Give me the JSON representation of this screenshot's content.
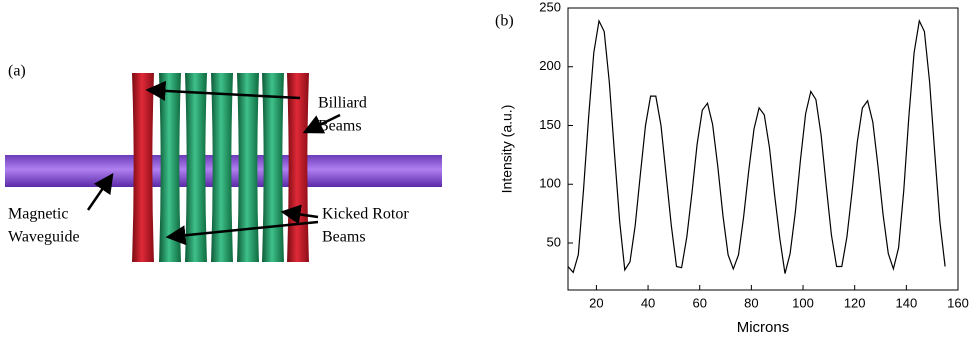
{
  "diagram": {
    "panel_label": "(a)",
    "billiard_label": [
      "Billiard",
      "Beams"
    ],
    "waveguide_label": [
      "Magnetic",
      "Waveguide"
    ],
    "kicked_label": [
      "Kicked Rotor",
      "Beams"
    ]
  },
  "chart_data": {
    "type": "line",
    "panel_label": "(b)",
    "x_label": "Microns",
    "y_label": "Intensity (a.u.)",
    "x": [
      9,
      11,
      13,
      15,
      17,
      19,
      21,
      23,
      25,
      27,
      29,
      31,
      33,
      35,
      37,
      39,
      41,
      43,
      45,
      47,
      49,
      51,
      53,
      55,
      57,
      59,
      61,
      63,
      65,
      67,
      69,
      71,
      73,
      75,
      77,
      79,
      81,
      83,
      85,
      87,
      89,
      91,
      93,
      95,
      97,
      99,
      101,
      103,
      105,
      107,
      109,
      111,
      113,
      115,
      117,
      119,
      121,
      123,
      125,
      127,
      129,
      131,
      133,
      135,
      137,
      139,
      141,
      143,
      145,
      147,
      149,
      151,
      153,
      155
    ],
    "values": [
      30,
      25,
      40,
      95,
      158,
      212,
      239,
      230,
      187,
      126,
      68,
      27,
      34,
      65,
      108,
      150,
      175,
      175,
      150,
      108,
      65,
      30,
      29,
      55,
      93,
      134,
      163,
      169,
      151,
      115,
      73,
      40,
      28,
      40,
      72,
      112,
      147,
      165,
      159,
      131,
      91,
      54,
      24,
      41,
      76,
      121,
      160,
      179,
      172,
      142,
      98,
      57,
      30,
      30,
      55,
      94,
      136,
      165,
      171,
      153,
      116,
      74,
      41,
      28,
      46,
      95,
      158,
      212,
      239,
      230,
      187,
      126,
      68,
      30
    ],
    "color": "#000000",
    "xlim": [
      9,
      160
    ],
    "ylim": [
      10,
      250
    ],
    "xticks": [
      20,
      40,
      60,
      80,
      100,
      120,
      140,
      160
    ],
    "yticks": [
      50,
      100,
      150,
      200,
      250
    ]
  }
}
